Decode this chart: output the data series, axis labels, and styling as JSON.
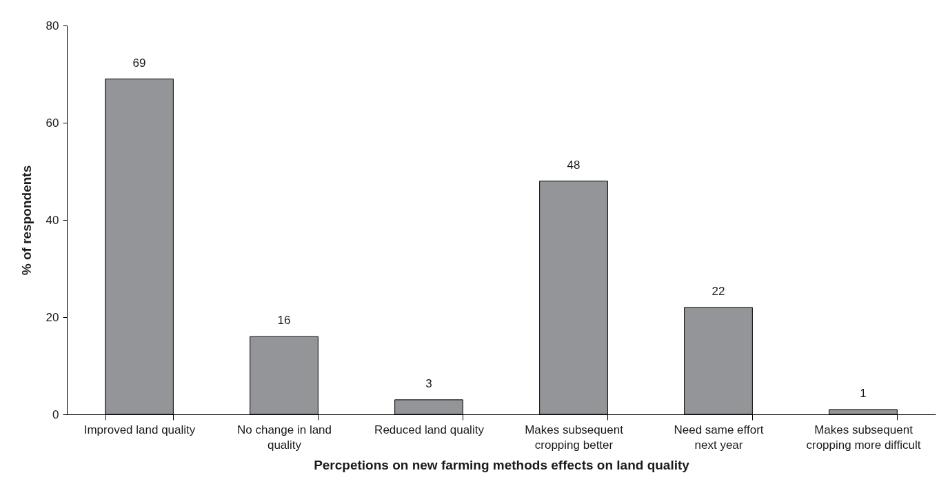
{
  "chart_data": {
    "type": "bar",
    "xlabel": "Percpetions on new farming methods effects on land quality",
    "ylabel": "% of respondents",
    "categories": [
      "Improved land quality",
      "No change in land\nquality",
      "Reduced land quality",
      "Makes subsequent\ncropping better",
      "Need same effort\nnext year",
      "Makes subsequent\ncropping more difficult"
    ],
    "values": [
      69,
      16,
      3,
      48,
      22,
      1
    ],
    "color": "#939598",
    "ylim": [
      0,
      80
    ],
    "yticks": [
      0,
      20,
      40,
      60,
      80
    ],
    "data_labels": true,
    "grid": false
  }
}
